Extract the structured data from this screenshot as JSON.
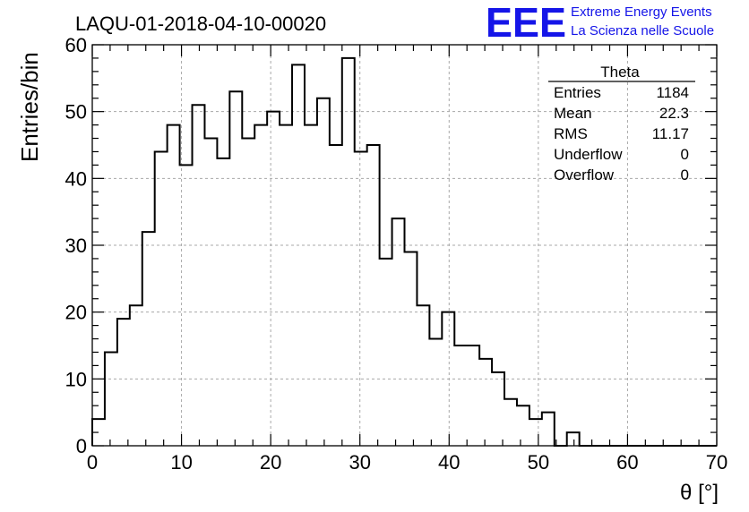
{
  "header": {
    "run_title": "LAQU-01-2018-04-10-00020",
    "logo_letters": "EEE",
    "logo_line1": "Extreme Energy Events",
    "logo_line2": "La Scienza nelle Scuole",
    "logo_color": "#1515e8"
  },
  "stats_box": {
    "title": "Theta",
    "rows": [
      {
        "label": "Entries",
        "value": "1184"
      },
      {
        "label": "Mean",
        "value": "22.3"
      },
      {
        "label": "RMS",
        "value": "11.17"
      },
      {
        "label": "Underflow",
        "value": "0"
      },
      {
        "label": "Overflow",
        "value": "0"
      }
    ]
  },
  "chart_data": {
    "type": "histogram",
    "xlabel": "θ [°]",
    "ylabel": "Entries/bin",
    "xlim": [
      0,
      70
    ],
    "ylim": [
      0,
      60
    ],
    "grid": true,
    "x_ticks": [
      0,
      10,
      20,
      30,
      40,
      50,
      60,
      70
    ],
    "y_ticks": [
      0,
      10,
      20,
      30,
      40,
      50,
      60
    ],
    "bin_width": 1.4,
    "bin_edges_start": 0,
    "values": [
      4,
      14,
      19,
      21,
      32,
      44,
      48,
      42,
      51,
      46,
      43,
      53,
      46,
      48,
      50,
      48,
      57,
      48,
      52,
      45,
      58,
      44,
      45,
      28,
      34,
      29,
      21,
      16,
      20,
      15,
      15,
      13,
      11,
      7,
      6,
      4,
      5,
      0,
      2,
      0,
      0,
      0,
      0,
      0,
      0,
      0,
      0,
      0,
      0,
      0
    ],
    "line_color": "#000000"
  }
}
